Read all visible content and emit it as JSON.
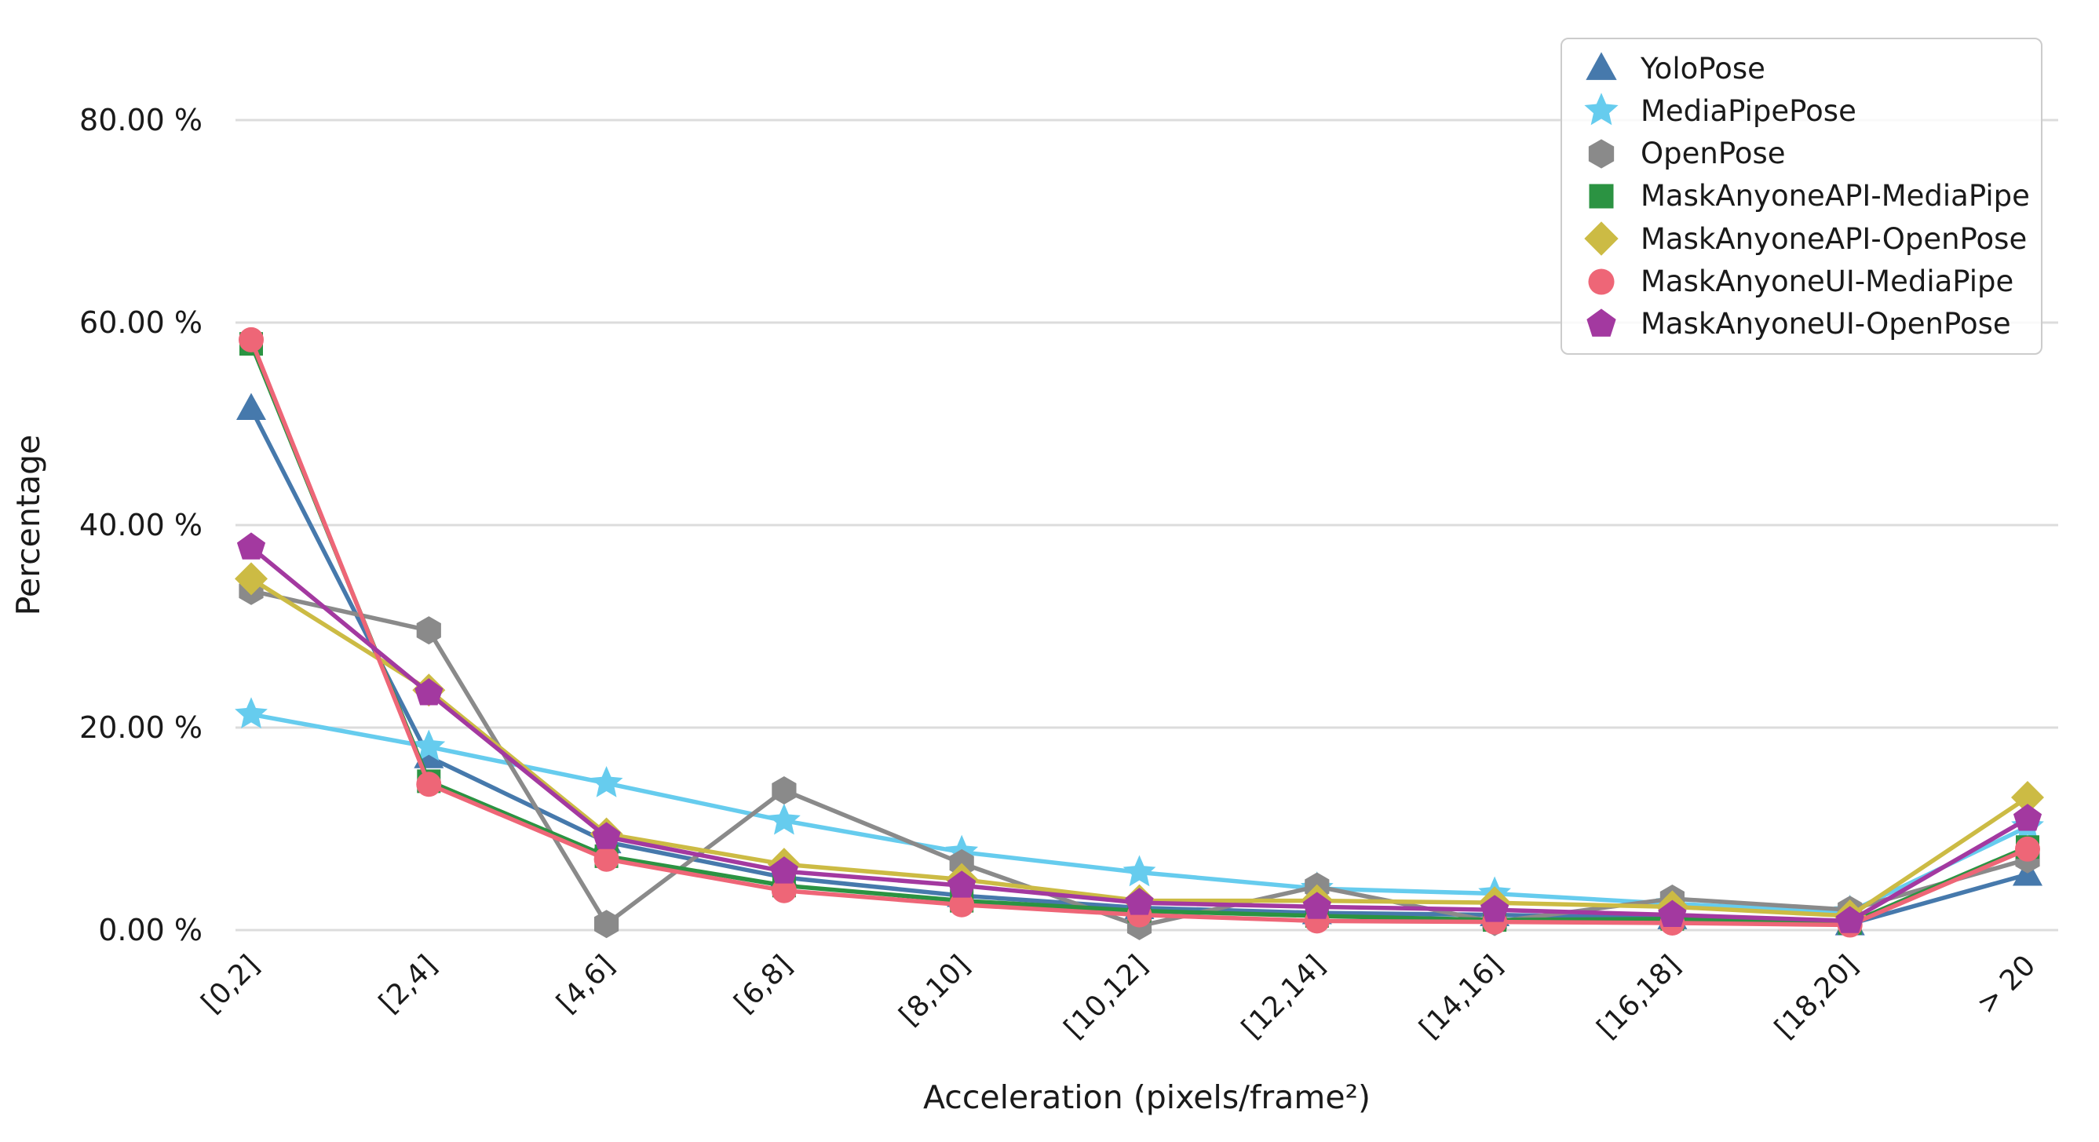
{
  "chart_data": {
    "type": "line",
    "title": "",
    "xlabel": "Acceleration (pixels/frame²)",
    "ylabel": "Percentage",
    "categories": [
      "[0,2]",
      "[2,4]",
      "[4,6]",
      "[6,8]",
      "[8,10]",
      "[10,12]",
      "[12,14]",
      "[14,16]",
      "[16,18]",
      "[18,20]",
      "> 20"
    ],
    "y_ticks": [
      {
        "value": 0,
        "label": "0.00 %"
      },
      {
        "value": 20,
        "label": "20.00 %"
      },
      {
        "value": 40,
        "label": "40.00 %"
      },
      {
        "value": 60,
        "label": "60.00 %"
      },
      {
        "value": 80,
        "label": "80.00 %"
      }
    ],
    "ylim": [
      0,
      84
    ],
    "grid": "horizontal-only",
    "legend_position": "top-right",
    "background": "#ffffff",
    "gridline_color": "#dcdcdc",
    "series": [
      {
        "name": "YoloPose",
        "marker": "triangle",
        "color": "#4679AC",
        "values": [
          51.5,
          17.1,
          8.7,
          5.2,
          3.4,
          2.2,
          1.7,
          1.5,
          1.2,
          0.6,
          5.5
        ]
      },
      {
        "name": "MediaPipePose",
        "marker": "star",
        "color": "#66CCEE",
        "values": [
          21.3,
          18.1,
          14.5,
          10.8,
          7.7,
          5.7,
          4.1,
          3.6,
          2.6,
          1.8,
          10.2
        ]
      },
      {
        "name": "OpenPose",
        "marker": "hexagon",
        "color": "#8A8A8A",
        "values": [
          33.5,
          29.6,
          0.6,
          13.8,
          6.6,
          0.4,
          4.3,
          0.8,
          3.1,
          2.0,
          7.0
        ]
      },
      {
        "name": "MaskAnyoneAPI-MediaPipe",
        "marker": "square",
        "color": "#2B9342",
        "values": [
          57.9,
          14.7,
          7.3,
          4.4,
          2.9,
          1.9,
          1.4,
          1.0,
          1.1,
          0.7,
          8.2
        ]
      },
      {
        "name": "MaskAnyoneAPI-OpenPose",
        "marker": "diamond",
        "color": "#CCBB44",
        "values": [
          34.7,
          23.7,
          9.5,
          6.5,
          5.0,
          2.9,
          2.9,
          2.7,
          2.3,
          1.4,
          13.1
        ]
      },
      {
        "name": "MaskAnyoneUI-MediaPipe",
        "marker": "circle",
        "color": "#EE6677",
        "values": [
          58.3,
          14.4,
          7.0,
          3.9,
          2.5,
          1.5,
          0.9,
          0.8,
          0.7,
          0.5,
          8.0
        ]
      },
      {
        "name": "MaskAnyoneUI-OpenPose",
        "marker": "pentagon",
        "color": "#A339A0",
        "values": [
          37.8,
          23.4,
          9.2,
          5.8,
          4.4,
          2.7,
          2.3,
          2.0,
          1.5,
          0.9,
          11.0
        ]
      }
    ]
  }
}
